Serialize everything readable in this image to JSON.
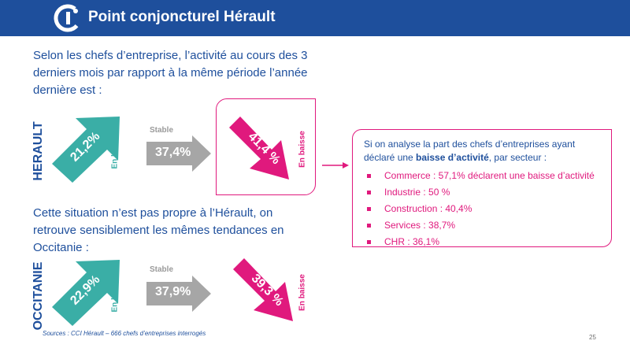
{
  "header": {
    "title": "Point conjoncturel Hérault",
    "logo_icon": "cci-logo-icon",
    "bg_color": "#1e4f9c"
  },
  "intro_text": "Selon les chefs d’entreprise, l’activité au cours des 3 derniers mois par rapport à la même période l’année dernière est :",
  "second_text": "Cette situation n’est pas propre à l’Hérault, on retrouve sensiblement les mêmes tendances en Occitanie :",
  "colors": {
    "up": "#3aaea6",
    "stable": "#a6a6a6",
    "down": "#e0197d",
    "text": "#1e4f9c"
  },
  "herault": {
    "region_label": "HERAULT",
    "up": {
      "value": "21,2%",
      "label": "En hausse"
    },
    "stable": {
      "value": "37,4%",
      "label": "Stable"
    },
    "down": {
      "value": "41,4 %",
      "label": "En baisse"
    }
  },
  "occitanie": {
    "region_label": "OCCITANIE",
    "up": {
      "value": "22,9%",
      "label": "En hausse"
    },
    "stable": {
      "value": "37,9%",
      "label": "Stable"
    },
    "down": {
      "value": "39,3 %",
      "label": "En baisse"
    }
  },
  "sectors": {
    "intro_prefix": "Si on analyse la part des chefs d’entreprises ayant déclaré une ",
    "intro_bold": "baisse d’activité",
    "intro_suffix": ", par secteur :",
    "items": [
      "Commerce : 57,1% déclarent une baisse d’activité",
      "Industrie : 50 %",
      "Construction : 40,4%",
      "Services : 38,7%",
      "CHR : 36,1%"
    ]
  },
  "footer": {
    "sources": "Sources : CCI Hérault – 666 chefs d’entreprises interrogés",
    "page_number": "25"
  }
}
